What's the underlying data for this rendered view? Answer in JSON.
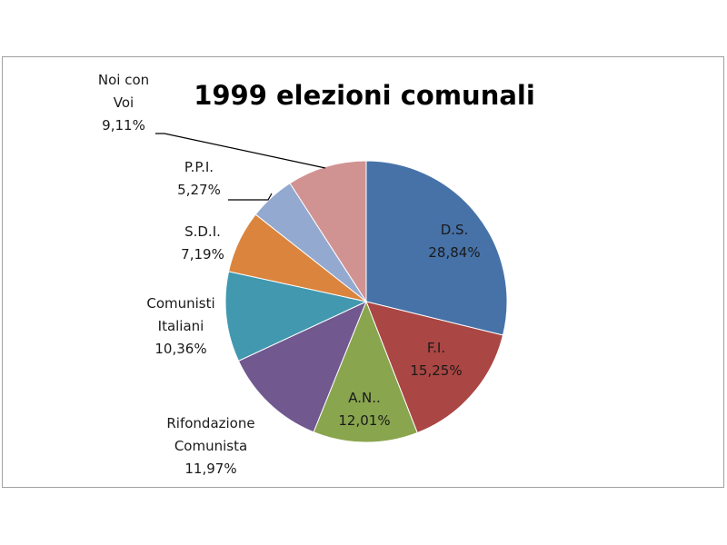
{
  "chart_data": {
    "type": "pie",
    "title": "1999 elezioni comunali",
    "start_angle_deg": 0,
    "direction": "clockwise",
    "slices": [
      {
        "name": "D.S.",
        "label_lines": [
          "D.S."
        ],
        "value": 28.84,
        "display": "28,84%",
        "color": "#4672A8",
        "label_pos": "inside"
      },
      {
        "name": "F.I.",
        "label_lines": [
          "F.I."
        ],
        "value": 15.25,
        "display": "15,25%",
        "color": "#AA4643",
        "label_pos": "inside"
      },
      {
        "name": "A.N..",
        "label_lines": [
          "A.N.."
        ],
        "value": 12.01,
        "display": "12,01%",
        "color": "#89A54E",
        "label_pos": "inside"
      },
      {
        "name": "Rifondazione Comunista",
        "label_lines": [
          "Rifondazione",
          "Comunista"
        ],
        "value": 11.97,
        "display": "11,97%",
        "color": "#71588F",
        "label_pos": "outside"
      },
      {
        "name": "Comunisti Italiani",
        "label_lines": [
          "Comunisti",
          "Italiani"
        ],
        "value": 10.36,
        "display": "10,36%",
        "color": "#4198AF",
        "label_pos": "outside"
      },
      {
        "name": "S.D.I.",
        "label_lines": [
          "S.D.I."
        ],
        "value": 7.19,
        "display": "7,19%",
        "color": "#DB843D",
        "label_pos": "outside"
      },
      {
        "name": "P.P.I.",
        "label_lines": [
          "P.P.I."
        ],
        "value": 5.27,
        "display": "5,27%",
        "color": "#93A9CF",
        "label_pos": "outside-leader"
      },
      {
        "name": "Noi con Voi",
        "label_lines": [
          "Noi con",
          "Voi"
        ],
        "value": 9.11,
        "display": "9,11%",
        "color": "#D19392",
        "label_pos": "outside-leader"
      }
    ]
  }
}
